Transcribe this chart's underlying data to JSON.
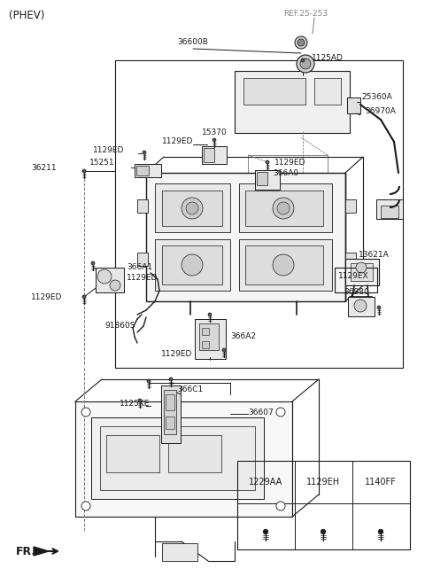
{
  "bg_color": "#ffffff",
  "lc": "#1a1a1a",
  "gray_ref": "#888888",
  "label_color": "#1a1a1a",
  "fs": 6.5,
  "fs_title": 8.5,
  "fs_ref": 6.5,
  "fs_table": 7.0,
  "title": "(PHEV)",
  "ref_label": "REF.25-253",
  "fr_label": "FR.",
  "table_headers": [
    "1229AA",
    "1129EH",
    "1140FF"
  ]
}
